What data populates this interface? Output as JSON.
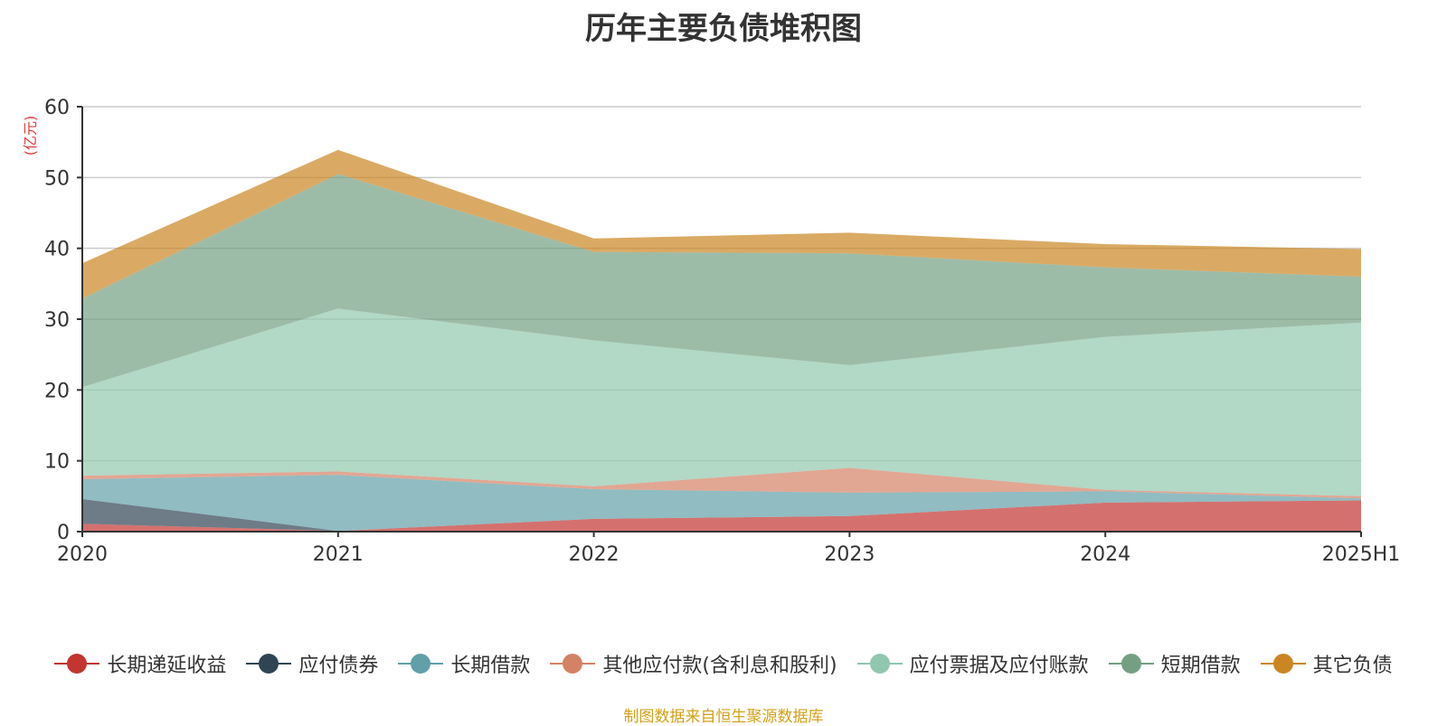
{
  "chart_data": {
    "type": "area",
    "stacked": true,
    "title": "历年主要负债堆积图",
    "ylabel": "(亿元)",
    "xlabel": "",
    "ylim": [
      0,
      60
    ],
    "yticks": [
      0,
      10,
      20,
      30,
      40,
      50,
      60
    ],
    "grid": true,
    "categories": [
      "2020",
      "2021",
      "2022",
      "2023",
      "2024",
      "2025H1"
    ],
    "series": [
      {
        "name": "长期递延收益",
        "color": "#c23531",
        "values": [
          1.1,
          0.1,
          1.8,
          2.2,
          4.1,
          4.4
        ]
      },
      {
        "name": "应付债券",
        "color": "#2f4554",
        "values": [
          3.5,
          0.0,
          0.0,
          0.0,
          0.0,
          0.0
        ]
      },
      {
        "name": "长期借款",
        "color": "#61a0a8",
        "values": [
          2.8,
          7.9,
          4.2,
          3.3,
          1.6,
          0.3
        ]
      },
      {
        "name": "其他应付款(含利息和股利)",
        "color": "#d48265",
        "values": [
          0.5,
          0.5,
          0.4,
          3.5,
          0.2,
          0.3
        ]
      },
      {
        "name": "应付票据及应付账款",
        "color": "#91c7ae",
        "values": [
          12.5,
          23.0,
          20.6,
          14.5,
          21.6,
          24.5
        ]
      },
      {
        "name": "短期借款",
        "color": "#749f83",
        "values": [
          12.5,
          19.0,
          12.5,
          15.8,
          9.8,
          6.5
        ]
      },
      {
        "name": "其它负债",
        "color": "#ca8622",
        "values": [
          5.0,
          3.4,
          1.9,
          2.9,
          3.3,
          3.9
        ]
      }
    ]
  },
  "source_note": "制图数据来自恒生聚源数据库"
}
